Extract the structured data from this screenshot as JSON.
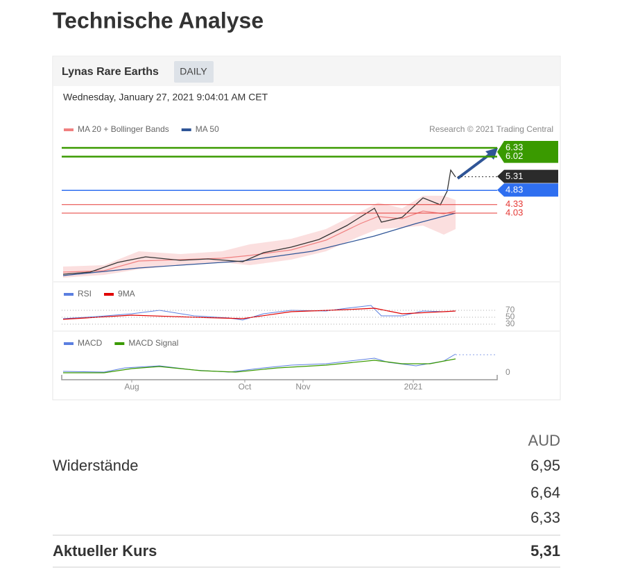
{
  "header": {
    "title": "Technische Analyse"
  },
  "widget": {
    "name": "Lynas Rare Earths",
    "period": "DAILY",
    "timestamp": "Wednesday, January 27, 2021 9:04:01 AM CET",
    "legend": [
      {
        "name": "MA 20 + Bollinger Bands",
        "color": "#f08080"
      },
      {
        "name": "MA 50",
        "color": "#2f5597"
      }
    ],
    "credit": "Research © 2021 Trading Central",
    "levels": [
      {
        "value": 6.33,
        "color": "#3a9a00",
        "style": "box"
      },
      {
        "value": 6.02,
        "color": "#3a9a00",
        "style": "box"
      },
      {
        "value": 5.31,
        "color": "#2b2b2b",
        "style": "box"
      },
      {
        "value": 4.83,
        "color": "#2f6ff0",
        "style": "box"
      },
      {
        "value": 4.33,
        "color": "#e53935",
        "style": "text"
      },
      {
        "value": 4.03,
        "color": "#e53935",
        "style": "text"
      }
    ],
    "rsi_legend": [
      {
        "name": "RSI",
        "color": "#5b7fe0"
      },
      {
        "name": "9MA",
        "color": "#e00000"
      }
    ],
    "rsi_ticks": [
      70,
      50,
      30
    ],
    "macd_legend": [
      {
        "name": "MACD",
        "color": "#5b7fe0"
      },
      {
        "name": "MACD Signal",
        "color": "#3a9a00"
      }
    ],
    "macd_ticks": [
      0
    ],
    "x_labels": [
      "Aug",
      "Oct",
      "Nov",
      "2021"
    ]
  },
  "table": {
    "currency": "AUD",
    "resistance": {
      "label": "Widerstände",
      "values": [
        "6,95",
        "6,64",
        "6,33"
      ]
    },
    "current": {
      "label": "Aktueller Kurs",
      "value": "5,31"
    }
  }
}
